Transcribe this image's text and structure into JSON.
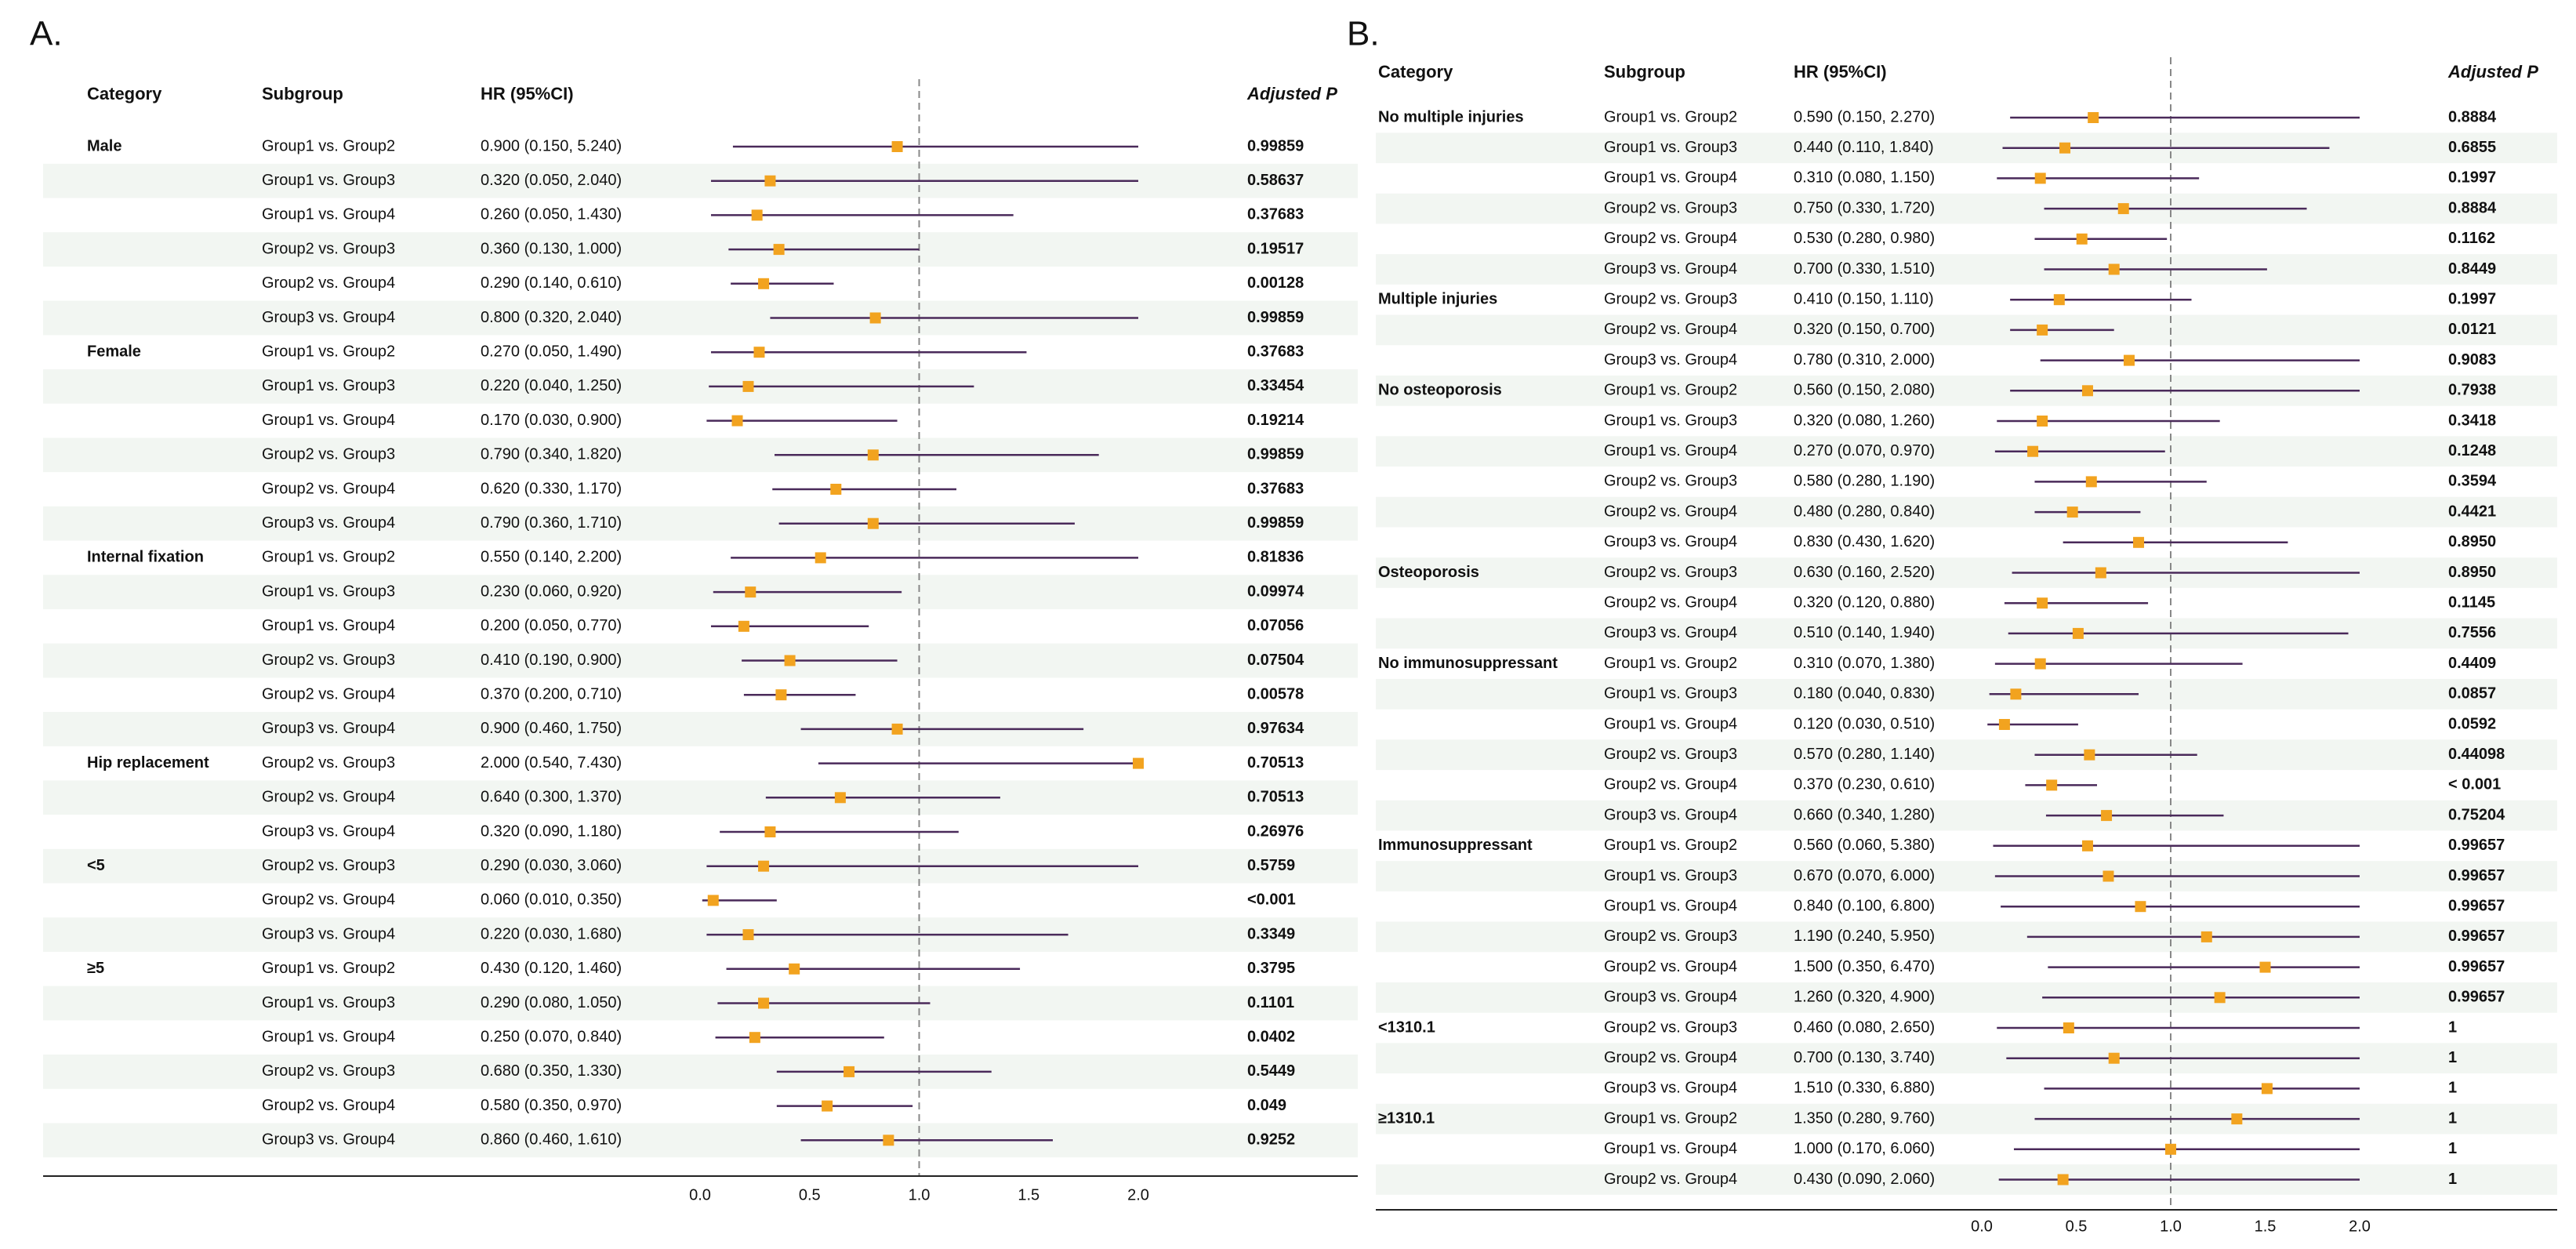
{
  "chart_data": [
    {
      "type": "forest",
      "panel_label": "A.",
      "headers": {
        "category": "Category",
        "subgroup": "Subgroup",
        "hr": "HR (95%CI)",
        "p": "Adjusted P"
      },
      "xlim": [
        0,
        2.0
      ],
      "xticks": [
        "0.0",
        "0.5",
        "1.0",
        "1.5",
        "2.0"
      ],
      "reference_line": 1.0,
      "rows": [
        {
          "category": "Male",
          "subgroup": "Group1 vs. Group2",
          "hr_text": "0.900 (0.150, 5.240)",
          "hr": 0.9,
          "lo": 0.15,
          "hi": 5.24,
          "p": "0.99859"
        },
        {
          "category": "",
          "subgroup": "Group1 vs. Group3",
          "hr_text": "0.320 (0.050, 2.040)",
          "hr": 0.32,
          "lo": 0.05,
          "hi": 2.04,
          "p": "0.58637"
        },
        {
          "category": "",
          "subgroup": "Group1 vs. Group4",
          "hr_text": "0.260 (0.050, 1.430)",
          "hr": 0.26,
          "lo": 0.05,
          "hi": 1.43,
          "p": "0.37683"
        },
        {
          "category": "",
          "subgroup": "Group2 vs. Group3",
          "hr_text": "0.360 (0.130, 1.000)",
          "hr": 0.36,
          "lo": 0.13,
          "hi": 1.0,
          "p": "0.19517"
        },
        {
          "category": "",
          "subgroup": "Group2 vs. Group4",
          "hr_text": "0.290 (0.140, 0.610)",
          "hr": 0.29,
          "lo": 0.14,
          "hi": 0.61,
          "p": "0.00128"
        },
        {
          "category": "",
          "subgroup": "Group3 vs. Group4",
          "hr_text": "0.800 (0.320, 2.040)",
          "hr": 0.8,
          "lo": 0.32,
          "hi": 2.04,
          "p": "0.99859"
        },
        {
          "category": "Female",
          "subgroup": "Group1 vs. Group2",
          "hr_text": "0.270 (0.050, 1.490)",
          "hr": 0.27,
          "lo": 0.05,
          "hi": 1.49,
          "p": "0.37683"
        },
        {
          "category": "",
          "subgroup": "Group1 vs. Group3",
          "hr_text": "0.220 (0.040, 1.250)",
          "hr": 0.22,
          "lo": 0.04,
          "hi": 1.25,
          "p": "0.33454"
        },
        {
          "category": "",
          "subgroup": "Group1 vs. Group4",
          "hr_text": "0.170 (0.030, 0.900)",
          "hr": 0.17,
          "lo": 0.03,
          "hi": 0.9,
          "p": "0.19214"
        },
        {
          "category": "",
          "subgroup": "Group2 vs. Group3",
          "hr_text": "0.790 (0.340, 1.820)",
          "hr": 0.79,
          "lo": 0.34,
          "hi": 1.82,
          "p": "0.99859"
        },
        {
          "category": "",
          "subgroup": "Group2 vs. Group4",
          "hr_text": "0.620 (0.330, 1.170)",
          "hr": 0.62,
          "lo": 0.33,
          "hi": 1.17,
          "p": "0.37683"
        },
        {
          "category": "",
          "subgroup": "Group3 vs. Group4",
          "hr_text": "0.790 (0.360, 1.710)",
          "hr": 0.79,
          "lo": 0.36,
          "hi": 1.71,
          "p": "0.99859"
        },
        {
          "category": "Internal fixation",
          "subgroup": "Group1 vs. Group2",
          "hr_text": "0.550 (0.140, 2.200)",
          "hr": 0.55,
          "lo": 0.14,
          "hi": 2.2,
          "p": "0.81836"
        },
        {
          "category": "",
          "subgroup": "Group1 vs. Group3",
          "hr_text": "0.230 (0.060, 0.920)",
          "hr": 0.23,
          "lo": 0.06,
          "hi": 0.92,
          "p": "0.09974"
        },
        {
          "category": "",
          "subgroup": "Group1 vs. Group4",
          "hr_text": "0.200 (0.050, 0.770)",
          "hr": 0.2,
          "lo": 0.05,
          "hi": 0.77,
          "p": "0.07056"
        },
        {
          "category": "",
          "subgroup": "Group2 vs. Group3",
          "hr_text": "0.410 (0.190, 0.900)",
          "hr": 0.41,
          "lo": 0.19,
          "hi": 0.9,
          "p": "0.07504"
        },
        {
          "category": "",
          "subgroup": "Group2 vs. Group4",
          "hr_text": "0.370 (0.200, 0.710)",
          "hr": 0.37,
          "lo": 0.2,
          "hi": 0.71,
          "p": "0.00578"
        },
        {
          "category": "",
          "subgroup": "Group3 vs. Group4",
          "hr_text": "0.900 (0.460, 1.750)",
          "hr": 0.9,
          "lo": 0.46,
          "hi": 1.75,
          "p": "0.97634"
        },
        {
          "category": "Hip replacement",
          "subgroup": "Group2 vs. Group3",
          "hr_text": "2.000 (0.540, 7.430)",
          "hr": 2.0,
          "lo": 0.54,
          "hi": 7.43,
          "p": "0.70513"
        },
        {
          "category": "",
          "subgroup": "Group2 vs. Group4",
          "hr_text": "0.640 (0.300, 1.370)",
          "hr": 0.64,
          "lo": 0.3,
          "hi": 1.37,
          "p": "0.70513"
        },
        {
          "category": "",
          "subgroup": "Group3 vs. Group4",
          "hr_text": "0.320 (0.090, 1.180)",
          "hr": 0.32,
          "lo": 0.09,
          "hi": 1.18,
          "p": "0.26976"
        },
        {
          "category": "<5",
          "subgroup": "Group2 vs. Group3",
          "hr_text": "0.290 (0.030, 3.060)",
          "hr": 0.29,
          "lo": 0.03,
          "hi": 3.06,
          "p": "0.5759"
        },
        {
          "category": "",
          "subgroup": "Group2 vs. Group4",
          "hr_text": "0.060 (0.010, 0.350)",
          "hr": 0.06,
          "lo": 0.01,
          "hi": 0.35,
          "p": "<0.001"
        },
        {
          "category": "",
          "subgroup": "Group3 vs. Group4",
          "hr_text": "0.220 (0.030, 1.680)",
          "hr": 0.22,
          "lo": 0.03,
          "hi": 1.68,
          "p": "0.3349"
        },
        {
          "category": "≥5",
          "subgroup": "Group1 vs. Group2",
          "hr_text": "0.430 (0.120, 1.460)",
          "hr": 0.43,
          "lo": 0.12,
          "hi": 1.46,
          "p": "0.3795"
        },
        {
          "category": "",
          "subgroup": "Group1 vs. Group3",
          "hr_text": "0.290 (0.080, 1.050)",
          "hr": 0.29,
          "lo": 0.08,
          "hi": 1.05,
          "p": "0.1101"
        },
        {
          "category": "",
          "subgroup": "Group1 vs. Group4",
          "hr_text": "0.250 (0.070, 0.840)",
          "hr": 0.25,
          "lo": 0.07,
          "hi": 0.84,
          "p": "0.0402"
        },
        {
          "category": "",
          "subgroup": "Group2 vs. Group3",
          "hr_text": "0.680 (0.350, 1.330)",
          "hr": 0.68,
          "lo": 0.35,
          "hi": 1.33,
          "p": "0.5449"
        },
        {
          "category": "",
          "subgroup": "Group2 vs. Group4",
          "hr_text": "0.580 (0.350, 0.970)",
          "hr": 0.58,
          "lo": 0.35,
          "hi": 0.97,
          "p": "0.049"
        },
        {
          "category": "",
          "subgroup": "Group3 vs. Group4",
          "hr_text": "0.860 (0.460, 1.610)",
          "hr": 0.86,
          "lo": 0.46,
          "hi": 1.61,
          "p": "0.9252"
        }
      ]
    },
    {
      "type": "forest",
      "panel_label": "B.",
      "headers": {
        "category": "Category",
        "subgroup": "Subgroup",
        "hr": "HR (95%CI)",
        "p": "Adjusted P"
      },
      "xlim": [
        0,
        2.0
      ],
      "xticks": [
        "0.0",
        "0.5",
        "1.0",
        "1.5",
        "2.0"
      ],
      "reference_line": 1.0,
      "rows": [
        {
          "category": "No multiple injuries",
          "subgroup": "Group1 vs. Group2",
          "hr_text": "0.590 (0.150, 2.270)",
          "hr": 0.59,
          "lo": 0.15,
          "hi": 2.27,
          "p": "0.8884"
        },
        {
          "category": "",
          "subgroup": "Group1 vs. Group3",
          "hr_text": "0.440 (0.110, 1.840)",
          "hr": 0.44,
          "lo": 0.11,
          "hi": 1.84,
          "p": "0.6855"
        },
        {
          "category": "",
          "subgroup": "Group1 vs. Group4",
          "hr_text": "0.310 (0.080, 1.150)",
          "hr": 0.31,
          "lo": 0.08,
          "hi": 1.15,
          "p": "0.1997"
        },
        {
          "category": "",
          "subgroup": "Group2 vs. Group3",
          "hr_text": "0.750 (0.330, 1.720)",
          "hr": 0.75,
          "lo": 0.33,
          "hi": 1.72,
          "p": "0.8884"
        },
        {
          "category": "",
          "subgroup": "Group2 vs. Group4",
          "hr_text": "0.530 (0.280, 0.980)",
          "hr": 0.53,
          "lo": 0.28,
          "hi": 0.98,
          "p": "0.1162"
        },
        {
          "category": "",
          "subgroup": "Group3 vs. Group4",
          "hr_text": "0.700 (0.330, 1.510)",
          "hr": 0.7,
          "lo": 0.33,
          "hi": 1.51,
          "p": "0.8449"
        },
        {
          "category": "Multiple injuries",
          "subgroup": "Group2 vs. Group3",
          "hr_text": "0.410 (0.150, 1.110)",
          "hr": 0.41,
          "lo": 0.15,
          "hi": 1.11,
          "p": "0.1997"
        },
        {
          "category": "",
          "subgroup": "Group2 vs. Group4",
          "hr_text": "0.320 (0.150, 0.700)",
          "hr": 0.32,
          "lo": 0.15,
          "hi": 0.7,
          "p": "0.0121"
        },
        {
          "category": "",
          "subgroup": "Group3 vs. Group4",
          "hr_text": "0.780 (0.310, 2.000)",
          "hr": 0.78,
          "lo": 0.31,
          "hi": 2.0,
          "p": "0.9083"
        },
        {
          "category": "No osteoporosis",
          "subgroup": "Group1 vs. Group2",
          "hr_text": "0.560 (0.150, 2.080)",
          "hr": 0.56,
          "lo": 0.15,
          "hi": 2.08,
          "p": "0.7938"
        },
        {
          "category": "",
          "subgroup": "Group1 vs. Group3",
          "hr_text": "0.320 (0.080, 1.260)",
          "hr": 0.32,
          "lo": 0.08,
          "hi": 1.26,
          "p": "0.3418"
        },
        {
          "category": "",
          "subgroup": "Group1 vs. Group4",
          "hr_text": "0.270 (0.070, 0.970)",
          "hr": 0.27,
          "lo": 0.07,
          "hi": 0.97,
          "p": "0.1248"
        },
        {
          "category": "",
          "subgroup": "Group2 vs. Group3",
          "hr_text": "0.580 (0.280, 1.190)",
          "hr": 0.58,
          "lo": 0.28,
          "hi": 1.19,
          "p": "0.3594"
        },
        {
          "category": "",
          "subgroup": "Group2 vs. Group4",
          "hr_text": "0.480 (0.280, 0.840)",
          "hr": 0.48,
          "lo": 0.28,
          "hi": 0.84,
          "p": "0.4421"
        },
        {
          "category": "",
          "subgroup": "Group3 vs. Group4",
          "hr_text": "0.830 (0.430, 1.620)",
          "hr": 0.83,
          "lo": 0.43,
          "hi": 1.62,
          "p": "0.8950"
        },
        {
          "category": "Osteoporosis",
          "subgroup": "Group2 vs. Group3",
          "hr_text": "0.630 (0.160, 2.520)",
          "hr": 0.63,
          "lo": 0.16,
          "hi": 2.52,
          "p": "0.8950"
        },
        {
          "category": "",
          "subgroup": "Group2 vs. Group4",
          "hr_text": "0.320 (0.120, 0.880)",
          "hr": 0.32,
          "lo": 0.12,
          "hi": 0.88,
          "p": "0.1145"
        },
        {
          "category": "",
          "subgroup": "Group3 vs. Group4",
          "hr_text": "0.510 (0.140, 1.940)",
          "hr": 0.51,
          "lo": 0.14,
          "hi": 1.94,
          "p": "0.7556"
        },
        {
          "category": "No immunosuppressant",
          "subgroup": "Group1 vs. Group2",
          "hr_text": "0.310 (0.070, 1.380)",
          "hr": 0.31,
          "lo": 0.07,
          "hi": 1.38,
          "p": "0.4409"
        },
        {
          "category": "",
          "subgroup": "Group1 vs. Group3",
          "hr_text": "0.180 (0.040, 0.830)",
          "hr": 0.18,
          "lo": 0.04,
          "hi": 0.83,
          "p": "0.0857"
        },
        {
          "category": "",
          "subgroup": "Group1 vs. Group4",
          "hr_text": "0.120 (0.030, 0.510)",
          "hr": 0.12,
          "lo": 0.03,
          "hi": 0.51,
          "p": "0.0592"
        },
        {
          "category": "",
          "subgroup": "Group2 vs. Group3",
          "hr_text": "0.570 (0.280, 1.140)",
          "hr": 0.57,
          "lo": 0.28,
          "hi": 1.14,
          "p": "0.44098"
        },
        {
          "category": "",
          "subgroup": "Group2 vs. Group4",
          "hr_text": "0.370 (0.230, 0.610)",
          "hr": 0.37,
          "lo": 0.23,
          "hi": 0.61,
          "p": "< 0.001"
        },
        {
          "category": "",
          "subgroup": "Group3 vs. Group4",
          "hr_text": "0.660 (0.340, 1.280)",
          "hr": 0.66,
          "lo": 0.34,
          "hi": 1.28,
          "p": "0.75204"
        },
        {
          "category": "Immunosuppressant",
          "subgroup": "Group1 vs. Group2",
          "hr_text": "0.560 (0.060, 5.380)",
          "hr": 0.56,
          "lo": 0.06,
          "hi": 5.38,
          "p": "0.99657"
        },
        {
          "category": "",
          "subgroup": "Group1 vs. Group3",
          "hr_text": "0.670 (0.070, 6.000)",
          "hr": 0.67,
          "lo": 0.07,
          "hi": 6.0,
          "p": "0.99657"
        },
        {
          "category": "",
          "subgroup": "Group1 vs. Group4",
          "hr_text": "0.840 (0.100, 6.800)",
          "hr": 0.84,
          "lo": 0.1,
          "hi": 6.8,
          "p": "0.99657"
        },
        {
          "category": "",
          "subgroup": "Group2 vs. Group3",
          "hr_text": "1.190 (0.240, 5.950)",
          "hr": 1.19,
          "lo": 0.24,
          "hi": 5.95,
          "p": "0.99657"
        },
        {
          "category": "",
          "subgroup": "Group2 vs. Group4",
          "hr_text": "1.500 (0.350, 6.470)",
          "hr": 1.5,
          "lo": 0.35,
          "hi": 6.47,
          "p": "0.99657"
        },
        {
          "category": "",
          "subgroup": "Group3 vs. Group4",
          "hr_text": "1.260 (0.320, 4.900)",
          "hr": 1.26,
          "lo": 0.32,
          "hi": 4.9,
          "p": "0.99657"
        },
        {
          "category": "<1310.1",
          "subgroup": "Group2 vs. Group3",
          "hr_text": "0.460 (0.080, 2.650)",
          "hr": 0.46,
          "lo": 0.08,
          "hi": 2.65,
          "p": "1"
        },
        {
          "category": "",
          "subgroup": "Group2 vs. Group4",
          "hr_text": "0.700 (0.130, 3.740)",
          "hr": 0.7,
          "lo": 0.13,
          "hi": 3.74,
          "p": "1"
        },
        {
          "category": "",
          "subgroup": "Group3 vs. Group4",
          "hr_text": "1.510 (0.330, 6.880)",
          "hr": 1.51,
          "lo": 0.33,
          "hi": 6.88,
          "p": "1"
        },
        {
          "category": "≥1310.1",
          "subgroup": "Group1 vs. Group2",
          "hr_text": "1.350 (0.280, 9.760)",
          "hr": 1.35,
          "lo": 0.28,
          "hi": 9.76,
          "p": "1"
        },
        {
          "category": "",
          "subgroup": "Group1 vs. Group4",
          "hr_text": "1.000 (0.170, 6.060)",
          "hr": 1.0,
          "lo": 0.17,
          "hi": 6.06,
          "p": "1"
        },
        {
          "category": "",
          "subgroup": "Group2 vs. Group4",
          "hr_text": "0.430 (0.090, 2.060)",
          "hr": 0.43,
          "lo": 0.09,
          "hi": 2.06,
          "p": "1"
        }
      ]
    }
  ],
  "colors": {
    "point": "#f2a31f",
    "ci_line": "#4a2a5a",
    "stripe": "#f2f6f2",
    "ref_line": "#888888"
  }
}
